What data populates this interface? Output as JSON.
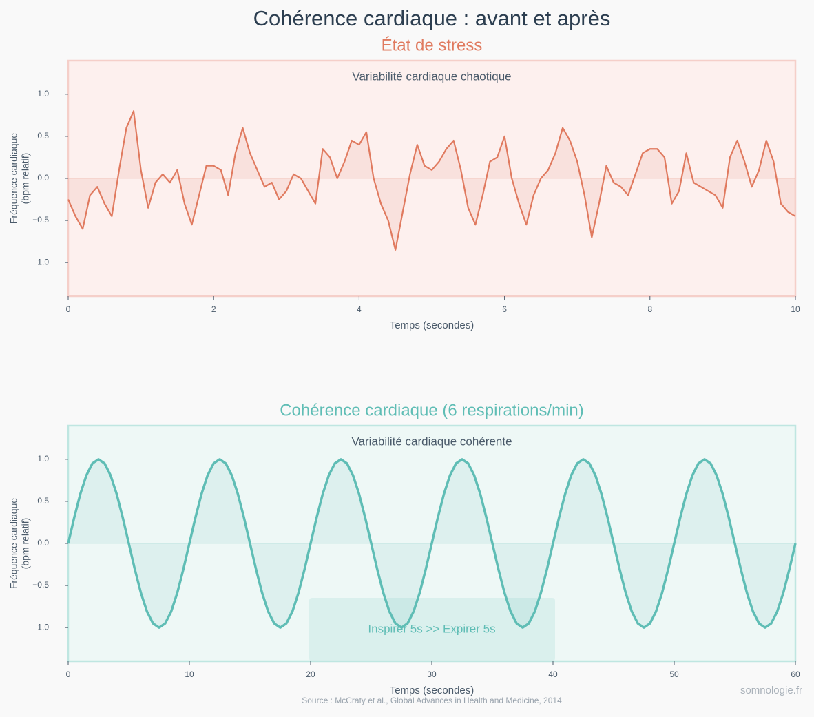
{
  "title": "Cohérence cardiaque : avant et après",
  "source": "Source : McCraty et al., Global Advances in Health and Medicine, 2014",
  "watermark": "somnologie.fr",
  "chart_data": [
    {
      "type": "line",
      "title": "État de stress",
      "annotation": "Variabilité cardiaque chaotique",
      "xlabel": "Temps (secondes)",
      "ylabel": [
        "Fréquence cardiaque",
        "(bpm relatif)"
      ],
      "color": "#e07a5f",
      "background": "#fdf0ee",
      "border": "#f5cfc9",
      "xlim": [
        0,
        10
      ],
      "xticks": [
        0,
        2,
        4,
        6,
        8,
        10
      ],
      "ylim": [
        -1.4,
        1.4
      ],
      "yticks": [
        {
          "value": -1,
          "label": "−1.0"
        },
        {
          "value": -0.5,
          "label": "−0.5"
        },
        {
          "value": 0,
          "label": "0.0"
        },
        0.5,
        {
          "value": 1,
          "label": "1.0"
        }
      ],
      "x": [
        0,
        0.1,
        0.2,
        0.3,
        0.4,
        0.5,
        0.6,
        0.7,
        0.8,
        0.9,
        1,
        1.1,
        1.2,
        1.3,
        1.4,
        1.5,
        1.6,
        1.7,
        1.8,
        1.9,
        2,
        2.1,
        2.2,
        2.3,
        2.4,
        2.5,
        2.6,
        2.7,
        2.8,
        2.9,
        3,
        3.1,
        3.2,
        3.3,
        3.4,
        3.5,
        3.6,
        3.7,
        3.8,
        3.9,
        4,
        4.1,
        4.2,
        4.3,
        4.4,
        4.5,
        4.6,
        4.7,
        4.8,
        4.9,
        5,
        5.1,
        5.2,
        5.3,
        5.4,
        5.5,
        5.6,
        5.7,
        5.8,
        5.9,
        6,
        6.1,
        6.2,
        6.3,
        6.4,
        6.5,
        6.6,
        6.7,
        6.8,
        6.9,
        7,
        7.1,
        7.2,
        7.3,
        7.4,
        7.5,
        7.6,
        7.7,
        7.8,
        7.9,
        8,
        8.1,
        8.2,
        8.3,
        8.4,
        8.5,
        8.6,
        8.7,
        8.8,
        8.9,
        9,
        9.1,
        9.2,
        9.3,
        9.4,
        9.5,
        9.6,
        9.7,
        9.8,
        9.9,
        10
      ],
      "values": [
        -0.25,
        -0.45,
        -0.6,
        -0.2,
        -0.1,
        -0.3,
        -0.45,
        0.1,
        0.6,
        0.8,
        0.1,
        -0.35,
        -0.05,
        0.05,
        -0.05,
        0.1,
        -0.3,
        -0.55,
        -0.2,
        0.15,
        0.15,
        0.1,
        -0.2,
        0.3,
        0.6,
        0.3,
        0.1,
        -0.1,
        -0.05,
        -0.25,
        -0.15,
        0.05,
        0,
        -0.15,
        -0.3,
        0.35,
        0.25,
        0,
        0.2,
        0.45,
        0.4,
        0.55,
        0,
        -0.3,
        -0.5,
        -0.85,
        -0.4,
        0.05,
        0.4,
        0.15,
        0.1,
        0.2,
        0.35,
        0.45,
        0.1,
        -0.35,
        -0.55,
        -0.2,
        0.2,
        0.25,
        0.5,
        0,
        -0.3,
        -0.55,
        -0.2,
        0,
        0.1,
        0.3,
        0.6,
        0.45,
        0.2,
        -0.2,
        -0.7,
        -0.3,
        0.15,
        -0.05,
        -0.1,
        -0.2,
        0.05,
        0.3,
        0.35,
        0.35,
        0.25,
        -0.3,
        -0.15,
        0.3,
        -0.05,
        -0.1,
        -0.15,
        -0.2,
        -0.35,
        0.25,
        0.45,
        0.2,
        -0.1,
        0.1,
        0.45,
        0.2,
        -0.3,
        -0.4,
        -0.45
      ]
    },
    {
      "type": "line",
      "title": "Cohérence cardiaque (6 respirations/min)",
      "annotation": "Variabilité cardiaque cohérente",
      "box_text": "Inspirer 5s  >>  Expirer 5s",
      "xlabel": "Temps (secondes)",
      "ylabel": [
        "Fréquence cardiaque",
        "(bpm relatif)"
      ],
      "color": "#5fbdb5",
      "background": "#eef8f6",
      "border": "#bfe6e1",
      "xlim": [
        0,
        60
      ],
      "xticks": [
        0,
        10,
        20,
        30,
        40,
        50,
        60
      ],
      "ylim": [
        -1.4,
        1.4
      ],
      "yticks": [
        {
          "value": -1,
          "label": "−1.0"
        },
        {
          "value": -0.5,
          "label": "−0.5"
        },
        {
          "value": 0,
          "label": "0.0"
        },
        0.5,
        {
          "value": 1,
          "label": "1.0"
        }
      ],
      "x": [
        0,
        0.5,
        1,
        1.5,
        2,
        2.5,
        3,
        3.5,
        4,
        4.5,
        5,
        5.5,
        6,
        6.5,
        7,
        7.5,
        8,
        8.5,
        9,
        9.5,
        10,
        10.5,
        11,
        11.5,
        12,
        12.5,
        13,
        13.5,
        14,
        14.5,
        15,
        15.5,
        16,
        16.5,
        17,
        17.5,
        18,
        18.5,
        19,
        19.5,
        20,
        20.5,
        21,
        21.5,
        22,
        22.5,
        23,
        23.5,
        24,
        24.5,
        25,
        25.5,
        26,
        26.5,
        27,
        27.5,
        28,
        28.5,
        29,
        29.5,
        30,
        30.5,
        31,
        31.5,
        32,
        32.5,
        33,
        33.5,
        34,
        34.5,
        35,
        35.5,
        36,
        36.5,
        37,
        37.5,
        38,
        38.5,
        39,
        39.5,
        40,
        40.5,
        41,
        41.5,
        42,
        42.5,
        43,
        43.5,
        44,
        44.5,
        45,
        45.5,
        46,
        46.5,
        47,
        47.5,
        48,
        48.5,
        49,
        49.5,
        50,
        50.5,
        51,
        51.5,
        52,
        52.5,
        53,
        53.5,
        54,
        54.5,
        55,
        55.5,
        56,
        56.5,
        57,
        57.5,
        58,
        58.5,
        59,
        59.5,
        60
      ],
      "values": [
        0,
        0.309,
        0.588,
        0.809,
        0.951,
        1,
        0.951,
        0.809,
        0.588,
        0.309,
        0,
        -0.309,
        -0.588,
        -0.809,
        -0.951,
        -1,
        -0.951,
        -0.809,
        -0.588,
        -0.309,
        0,
        0.309,
        0.588,
        0.809,
        0.951,
        1,
        0.951,
        0.809,
        0.588,
        0.309,
        0,
        -0.309,
        -0.588,
        -0.809,
        -0.951,
        -1,
        -0.951,
        -0.809,
        -0.588,
        -0.309,
        0,
        0.309,
        0.588,
        0.809,
        0.951,
        1,
        0.951,
        0.809,
        0.588,
        0.309,
        0,
        -0.309,
        -0.588,
        -0.809,
        -0.951,
        -1,
        -0.951,
        -0.809,
        -0.588,
        -0.309,
        0,
        0.309,
        0.588,
        0.809,
        0.951,
        1,
        0.951,
        0.809,
        0.588,
        0.309,
        0,
        -0.309,
        -0.588,
        -0.809,
        -0.951,
        -1,
        -0.951,
        -0.809,
        -0.588,
        -0.309,
        0,
        0.309,
        0.588,
        0.809,
        0.951,
        1,
        0.951,
        0.809,
        0.588,
        0.309,
        0,
        -0.309,
        -0.588,
        -0.809,
        -0.951,
        -1,
        -0.951,
        -0.809,
        -0.588,
        -0.309,
        0,
        0.309,
        0.588,
        0.809,
        0.951,
        1,
        0.951,
        0.809,
        0.588,
        0.309,
        0,
        -0.309,
        -0.588,
        -0.809,
        -0.951,
        -1,
        -0.951,
        -0.809,
        -0.588,
        -0.309,
        0
      ]
    }
  ]
}
